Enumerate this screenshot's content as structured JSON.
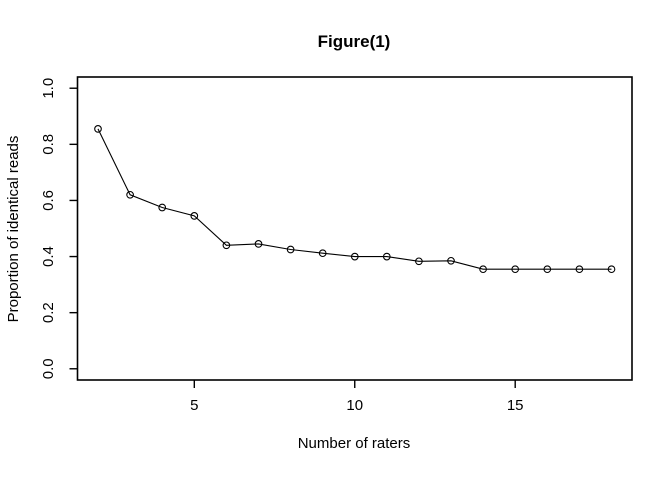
{
  "chart_data": {
    "type": "line",
    "title": "Figure(1)",
    "xlabel": "Number of raters",
    "ylabel": "Proportion of identical reads",
    "x": [
      2,
      3,
      4,
      5,
      6,
      7,
      8,
      9,
      10,
      11,
      12,
      13,
      14,
      15,
      16,
      17,
      18
    ],
    "y": [
      0.855,
      0.62,
      0.575,
      0.545,
      0.44,
      0.445,
      0.425,
      0.412,
      0.4,
      0.4,
      0.383,
      0.385,
      0.355,
      0.355,
      0.355,
      0.355,
      0.355
    ],
    "xticks": [
      5,
      10,
      15
    ],
    "yticks": [
      "0.0",
      "0.2",
      "0.4",
      "0.6",
      "0.8",
      "1.0"
    ],
    "xlim": [
      1.36,
      18.64
    ],
    "ylim": [
      -0.04,
      1.04
    ],
    "marker": "open-circle",
    "line_color": "#000000",
    "axis_color": "#000000",
    "text_color": "#000000",
    "background_color": "#ffffff",
    "grid": "off",
    "legend": "none"
  }
}
